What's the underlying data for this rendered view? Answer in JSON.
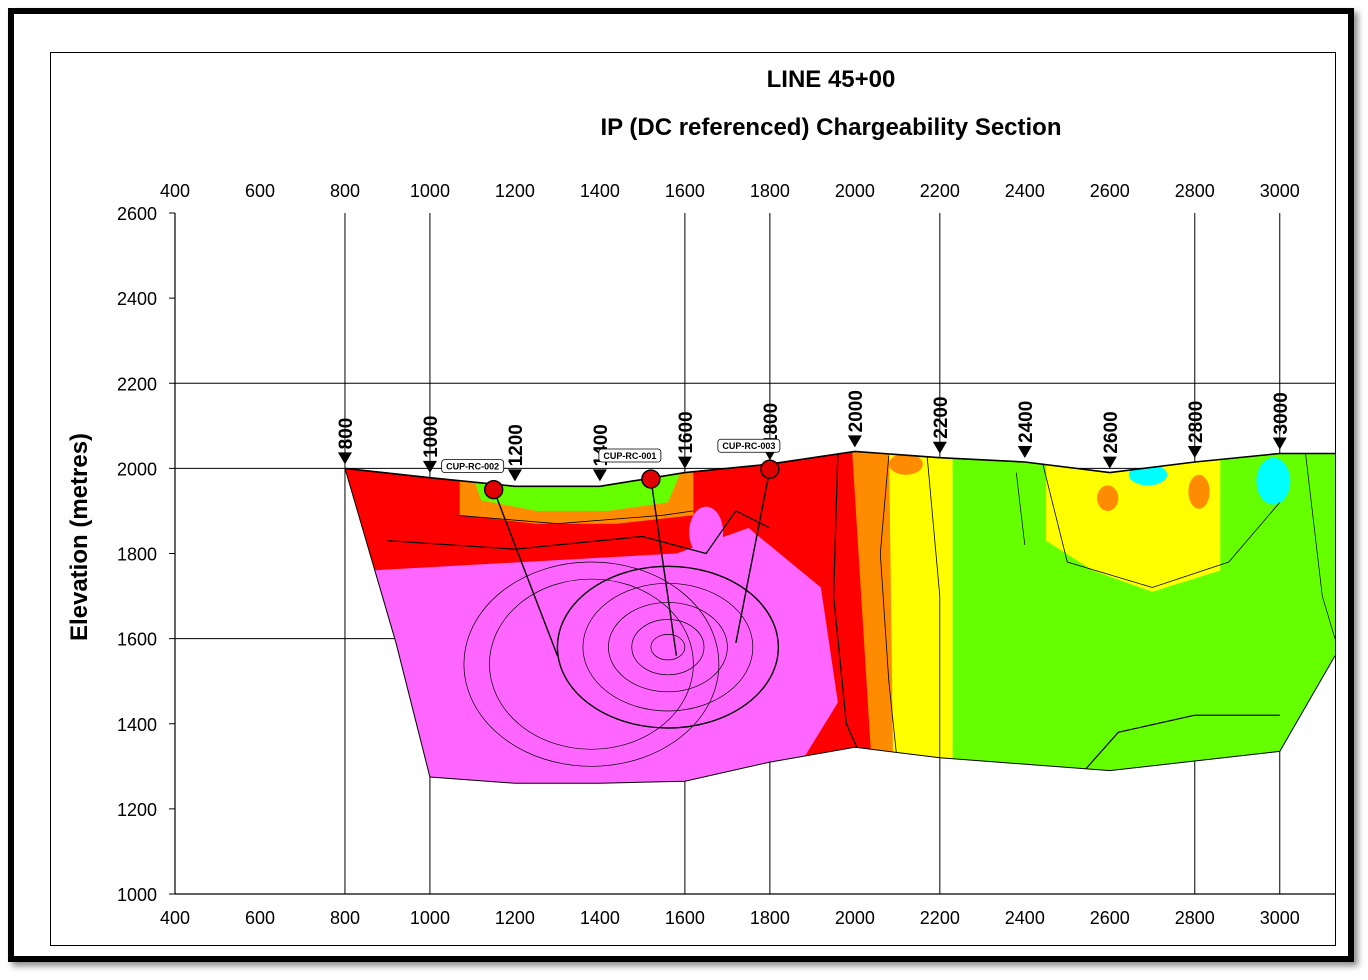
{
  "chart_data": {
    "type": "heatmap",
    "title": "LINE 45+00",
    "subtitle": "IP (DC referenced) Chargeability Section",
    "xlabel": "",
    "ylabel": "Elevation (metres)",
    "xlim": [
      400,
      3130
    ],
    "ylim": [
      1000,
      2600
    ],
    "x_ticks": [
      "400",
      "600",
      "800",
      "1000",
      "1200",
      "1400",
      "1600",
      "1800",
      "2000",
      "2200",
      "2400",
      "2600",
      "2800",
      "3000"
    ],
    "y_ticks": [
      "2600",
      "2400",
      "2200",
      "2000",
      "1800",
      "1600",
      "1400",
      "1200",
      "1000"
    ],
    "x_tick_values": [
      400,
      600,
      800,
      1000,
      1200,
      1400,
      1600,
      1800,
      2000,
      2200,
      2400,
      2600,
      2800,
      3000
    ],
    "y_tick_values": [
      2600,
      2400,
      2200,
      2000,
      1800,
      1600,
      1400,
      1200,
      1000
    ],
    "stations": [
      {
        "label": "800",
        "x": 800,
        "y": 2000
      },
      {
        "label": "1000",
        "x": 1000,
        "y": 1980
      },
      {
        "label": "1200",
        "x": 1200,
        "y": 1960
      },
      {
        "label": "1400",
        "x": 1400,
        "y": 1960
      },
      {
        "label": "1600",
        "x": 1600,
        "y": 1990
      },
      {
        "label": "1800",
        "x": 1800,
        "y": 2010
      },
      {
        "label": "2000",
        "x": 2000,
        "y": 2040
      },
      {
        "label": "2200",
        "x": 2200,
        "y": 2025
      },
      {
        "label": "2400",
        "x": 2400,
        "y": 2015
      },
      {
        "label": "2600",
        "x": 2600,
        "y": 1990
      },
      {
        "label": "2800",
        "x": 2800,
        "y": 2015
      },
      {
        "label": "3000",
        "x": 3000,
        "y": 2035
      }
    ],
    "topography": [
      [
        800,
        2000
      ],
      [
        1000,
        1978
      ],
      [
        1200,
        1958
      ],
      [
        1400,
        1958
      ],
      [
        1600,
        1990
      ],
      [
        1800,
        2010
      ],
      [
        2000,
        2040
      ],
      [
        2200,
        2025
      ],
      [
        2400,
        2015
      ],
      [
        2600,
        1990
      ],
      [
        2800,
        2015
      ],
      [
        3000,
        2035
      ],
      [
        3130,
        2035
      ]
    ],
    "section_bottom": [
      [
        3130,
        1560
      ],
      [
        3000,
        1335
      ],
      [
        2600,
        1290
      ],
      [
        2200,
        1320
      ],
      [
        2000,
        1345
      ],
      [
        1800,
        1310
      ],
      [
        1600,
        1265
      ],
      [
        1400,
        1260
      ],
      [
        1200,
        1260
      ],
      [
        1000,
        1275
      ],
      [
        920,
        1590
      ],
      [
        800,
        2000
      ]
    ],
    "drillholes": [
      {
        "label": "CUP-RC-002",
        "collar": [
          1150,
          1950
        ],
        "end": [
          1300,
          1560
        ]
      },
      {
        "label": "CUP-RC-001",
        "collar": [
          1520,
          1975
        ],
        "end": [
          1580,
          1560
        ]
      },
      {
        "label": "CUP-RC-003",
        "collar": [
          1800,
          1998
        ],
        "end": [
          1720,
          1590
        ]
      }
    ],
    "grid": {
      "x": [
        800,
        1000,
        1600,
        1800,
        2200,
        2800,
        3000
      ],
      "y": [
        2200,
        2000,
        1600
      ]
    },
    "colors": {
      "magenta": "#ff66ff",
      "red": "#ff0000",
      "orange": "#ff8c00",
      "yellow": "#ffff00",
      "green": "#66ff00",
      "cyan": "#00ffff",
      "hole_marker": "#e00000"
    }
  }
}
